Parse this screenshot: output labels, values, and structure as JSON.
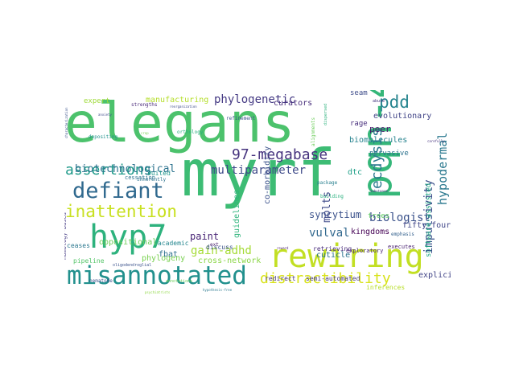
{
  "words": [
    {
      "id": "elegans",
      "text": "elegans",
      "color": "#4cc26c",
      "v": false
    },
    {
      "id": "myrf",
      "text": "myrf",
      "color": "#3dbc74",
      "v": false
    },
    {
      "id": "pqn47",
      "text": "pqn-47",
      "color": "#35b779",
      "v": true
    },
    {
      "id": "rewiring",
      "text": "rewiring",
      "color": "#c2df23",
      "v": false
    },
    {
      "id": "hyp7",
      "text": "hyp7",
      "color": "#2db27d",
      "v": false
    },
    {
      "id": "misannotated",
      "text": "misannotated",
      "color": "#21908d",
      "v": false
    },
    {
      "id": "defiant",
      "text": "defiant",
      "color": "#30698e",
      "v": false
    },
    {
      "id": "distractibility",
      "text": "distractibility",
      "color": "#d8e219",
      "v": false
    },
    {
      "id": "assertions",
      "text": "assertions",
      "color": "#1f9a8a",
      "v": false
    },
    {
      "id": "inattention",
      "text": "inattention",
      "color": "#c8e020",
      "v": false
    },
    {
      "id": "megabase",
      "text": "97-megabase",
      "color": "#46337e",
      "v": false
    },
    {
      "id": "pdd",
      "text": "pdd",
      "color": "#25848e",
      "v": false
    },
    {
      "id": "ecdysis",
      "text": "ecdysis",
      "color": "#2a788e",
      "v": true
    },
    {
      "id": "biotechnological",
      "text": "biotechnological",
      "color": "#2c728e",
      "v": false
    },
    {
      "id": "hypodermal",
      "text": "hypodermal",
      "color": "#2a788e",
      "v": true
    },
    {
      "id": "phylogenetic",
      "text": "phylogenetic",
      "color": "#443983",
      "v": false
    },
    {
      "id": "gainadhd",
      "text": "gain-adhd",
      "color": "#a5db36",
      "v": false
    },
    {
      "id": "biologist",
      "text": "biologist",
      "color": "#3b528b",
      "v": false
    },
    {
      "id": "multiparameter",
      "text": "multiparameter",
      "color": "#3e4a89",
      "v": false
    },
    {
      "id": "vulval",
      "text": "vulval",
      "color": "#31688e",
      "v": false
    },
    {
      "id": "syncytium",
      "text": "syncytium",
      "color": "#3b528b",
      "v": false
    },
    {
      "id": "paint",
      "text": "paint",
      "color": "#482475",
      "v": false
    },
    {
      "id": "curators",
      "text": "curators",
      "color": "#472d7b",
      "v": false
    },
    {
      "id": "peer",
      "text": "peer",
      "color": "#481a6c",
      "v": false
    },
    {
      "id": "fiftyfour",
      "text": "fifty-four",
      "color": "#404688",
      "v": false
    },
    {
      "id": "dtc",
      "text": "dtc",
      "color": "#1fa088",
      "v": false
    },
    {
      "id": "molts",
      "text": "molts",
      "color": "#3e4989",
      "v": true
    },
    {
      "id": "impulsivity",
      "text": "impulsivity",
      "color": "#3b518b",
      "v": true
    },
    {
      "id": "explicit",
      "text": "explicit",
      "color": "#414487",
      "v": false
    },
    {
      "id": "biomolecules",
      "text": "biomolecules",
      "color": "#26828e",
      "v": false
    },
    {
      "id": "evolutionary",
      "text": "evolutionary",
      "color": "#414487",
      "v": false
    },
    {
      "id": "kingdoms",
      "text": "kingdoms",
      "color": "#440154",
      "v": false
    },
    {
      "id": "oppositional",
      "text": "oppositional",
      "color": "#6ece58",
      "v": false
    },
    {
      "id": "cuticle",
      "text": "cuticle",
      "color": "#2c728e",
      "v": false
    },
    {
      "id": "retrieving",
      "text": "retrieving",
      "color": "#472a7a",
      "v": false
    },
    {
      "id": "manufacturing",
      "text": "manufacturing",
      "color": "#b5de2b",
      "v": false
    },
    {
      "id": "expert",
      "text": "expert",
      "color": "#9fda3a",
      "v": false
    },
    {
      "id": "pervasive",
      "text": "pervasive",
      "color": "#2c728e",
      "v": false
    },
    {
      "id": "seam",
      "text": "seam",
      "color": "#3e4c8a",
      "v": false
    },
    {
      "id": "rage",
      "text": "rage",
      "color": "#472e7c",
      "v": false
    },
    {
      "id": "fbat",
      "text": "fbat",
      "color": "#2d708e",
      "v": false
    },
    {
      "id": "phylogeny",
      "text": "phylogeny",
      "color": "#7ad151",
      "v": false
    },
    {
      "id": "crossnetwork",
      "text": "cross-network",
      "color": "#8bd646",
      "v": false
    },
    {
      "id": "redirect",
      "text": "redirect",
      "color": "#46337e",
      "v": false
    },
    {
      "id": "semiautomated",
      "text": "semi-automated",
      "color": "#453882",
      "v": false
    },
    {
      "id": "discuss",
      "text": "discuss",
      "color": "#3b528b",
      "v": false
    },
    {
      "id": "academic",
      "text": "academic",
      "color": "#24868e",
      "v": false
    },
    {
      "id": "ceases",
      "text": "ceases",
      "color": "#2a778e",
      "v": false
    },
    {
      "id": "suited",
      "text": "suited",
      "color": "#1f968b",
      "v": false
    },
    {
      "id": "cessation",
      "text": "cessation",
      "color": "#2c728e",
      "v": false
    },
    {
      "id": "pipeline",
      "text": "pipeline",
      "color": "#54c568",
      "v": false
    },
    {
      "id": "exploratory",
      "text": "exploratory",
      "color": "#482576",
      "v": false
    },
    {
      "id": "executes",
      "text": "executes",
      "color": "#481f70",
      "v": false
    },
    {
      "id": "inferences",
      "text": "inferences",
      "color": "#b8de29",
      "v": false
    },
    {
      "id": "trees",
      "text": "trees",
      "color": "#5ec962",
      "v": false
    },
    {
      "id": "emphasis",
      "text": "emphasis",
      "color": "#34618d",
      "v": false
    },
    {
      "id": "softwareassisted",
      "text": "software-assisted",
      "color": "#22a884",
      "v": true
    },
    {
      "id": "guidelines",
      "text": "guidelines",
      "color": "#2fb47c",
      "v": true
    },
    {
      "id": "comorbidity",
      "text": "co-morbidity",
      "color": "#3b528b",
      "v": true
    },
    {
      "id": "paralogs",
      "text": "paralogs",
      "color": "#472d7b",
      "v": false
    },
    {
      "id": "strengths",
      "text": "strengths",
      "color": "#482878",
      "v": false
    },
    {
      "id": "reorganization",
      "text": "reorganization",
      "color": "#3e4c8a",
      "v": false
    },
    {
      "id": "refinement",
      "text": "refinement",
      "color": "#3b528b",
      "v": false
    },
    {
      "id": "depositing",
      "text": "depositing",
      "color": "#20928c",
      "v": false
    },
    {
      "id": "orthology",
      "text": "orthology",
      "color": "#29af7f",
      "v": false
    },
    {
      "id": "package",
      "text": "package",
      "color": "#277f8e",
      "v": false
    },
    {
      "id": "building",
      "text": "building",
      "color": "#2ab07f",
      "v": false
    },
    {
      "id": "homologybased",
      "text": "homology-based",
      "color": "#443a83",
      "v": true
    },
    {
      "id": "oligodendroglial",
      "text": "oligodendroglial",
      "color": "#3b528b",
      "v": false
    },
    {
      "id": "nematode",
      "text": "nematode",
      "color": "#3b528b",
      "v": false
    },
    {
      "id": "annotations",
      "text": "annotations",
      "color": "#6ccd5a",
      "v": false
    },
    {
      "id": "psychiatrists",
      "text": "psychiatrists",
      "color": "#8fd744",
      "v": false
    },
    {
      "id": "hypothesisfree",
      "text": "hypothesis-free",
      "color": "#2a788e",
      "v": false
    },
    {
      "id": "inherently",
      "text": "inherently",
      "color": "#2c728e",
      "v": false
    },
    {
      "id": "synthesizes",
      "text": "synthesizes",
      "color": "#3e4a89",
      "v": true
    },
    {
      "id": "substance",
      "text": "substance",
      "color": "#46307e",
      "v": false
    },
    {
      "id": "alignments",
      "text": "alignments",
      "color": "#6ccd5a",
      "v": true
    },
    {
      "id": "dispersed",
      "text": "dispersed",
      "color": "#2db27d",
      "v": true
    },
    {
      "id": "characterization",
      "text": "characterization",
      "color": "#3b528b",
      "v": true
    },
    {
      "id": "anxiety",
      "text": "anxiety",
      "color": "#3e4c8a",
      "v": false
    },
    {
      "id": "crop",
      "text": "crop",
      "color": "#7ad151",
      "v": false
    },
    {
      "id": "abuse",
      "text": "abuse",
      "color": "#453781",
      "v": false
    },
    {
      "id": "ext",
      "text": "ext",
      "color": "#481b6d",
      "v": false
    },
    {
      "id": "reward",
      "text": "reward",
      "color": "#481b6d",
      "v": false
    },
    {
      "id": "carefully",
      "text": "carefully",
      "color": "#46337e",
      "v": false
    }
  ]
}
